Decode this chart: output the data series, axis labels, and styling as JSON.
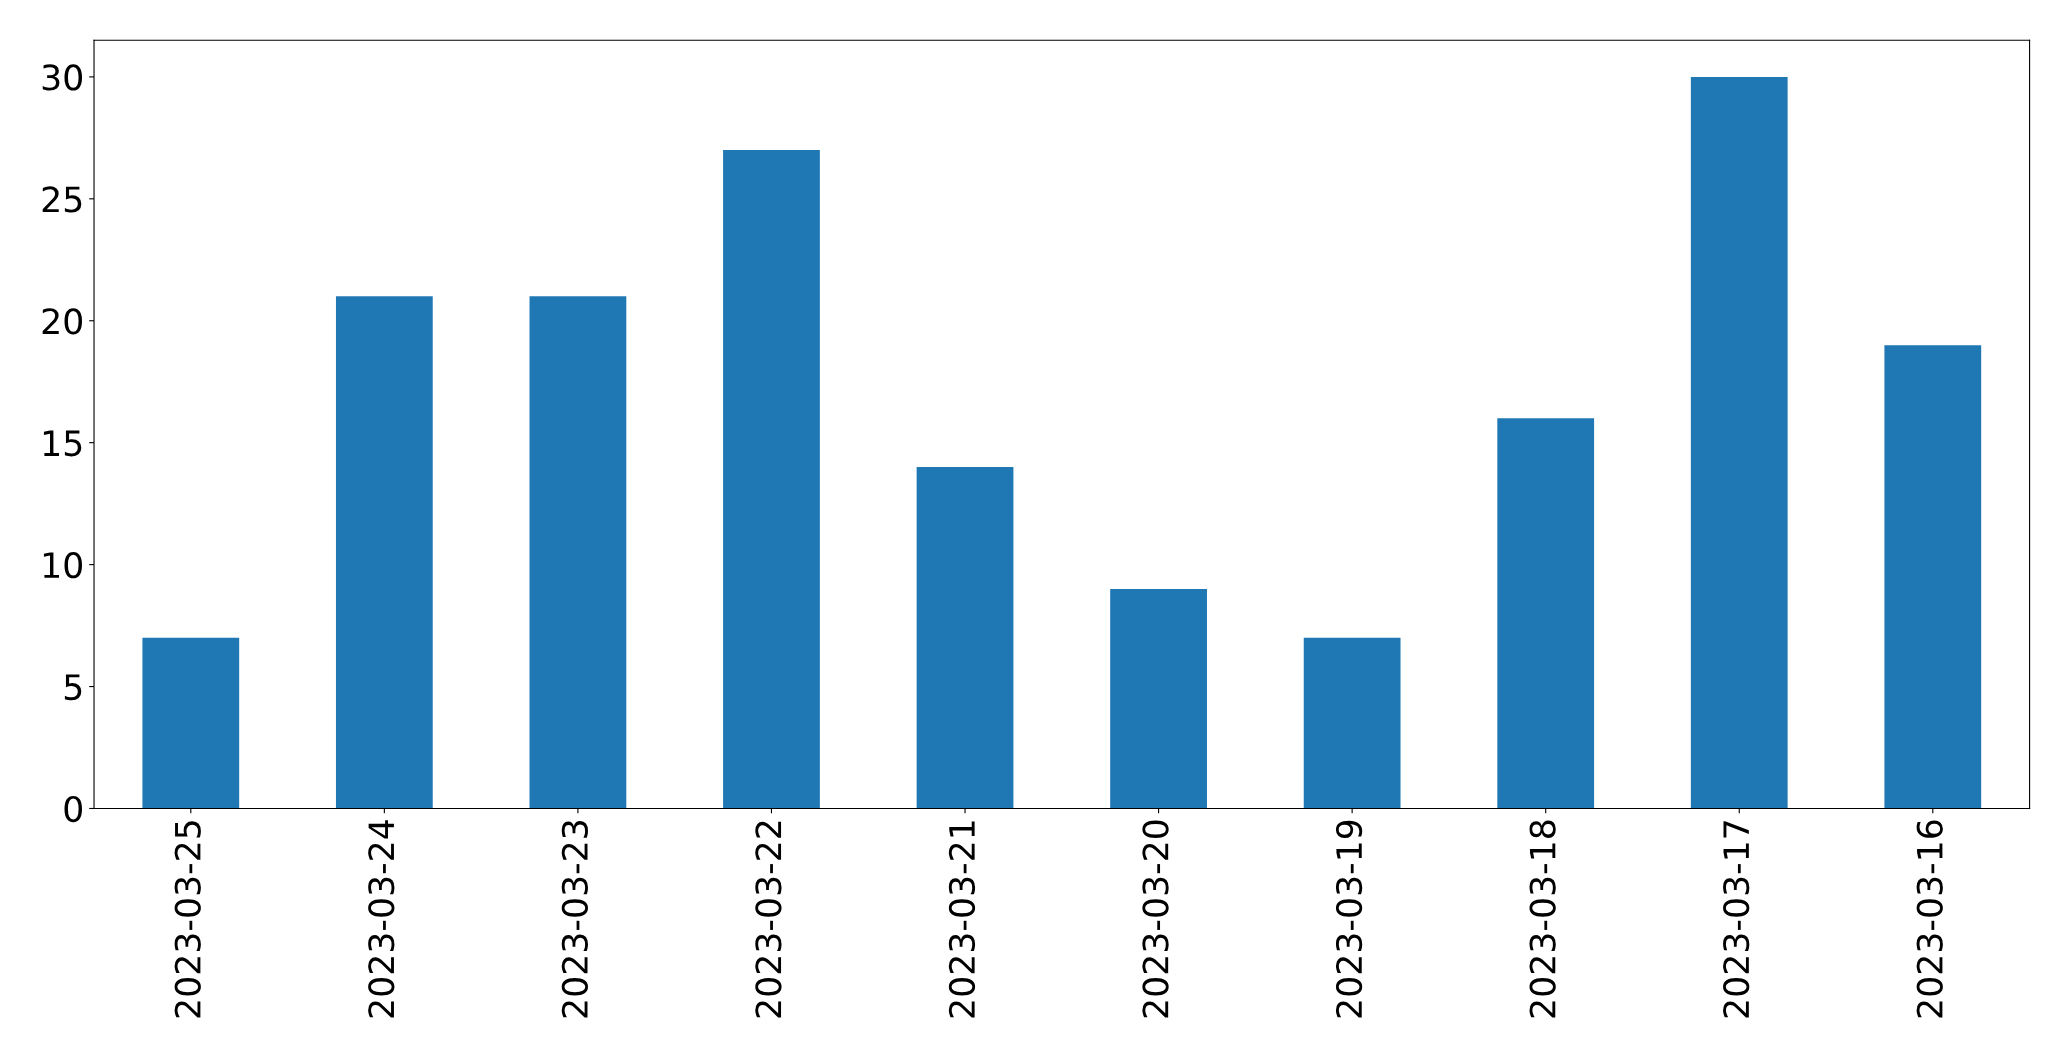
{
  "chart_data": {
    "type": "bar",
    "categories": [
      "2023-03-25",
      "2023-03-24",
      "2023-03-23",
      "2023-03-22",
      "2023-03-21",
      "2023-03-20",
      "2023-03-19",
      "2023-03-18",
      "2023-03-17",
      "2023-03-16"
    ],
    "values": [
      7,
      21,
      21,
      27,
      14,
      9,
      7,
      16,
      30,
      19
    ],
    "color": "#1f77b4",
    "ylim": [
      0,
      31.5
    ],
    "yticks": [
      0,
      5,
      10,
      15,
      20,
      25,
      30
    ],
    "grid": false,
    "legend": false
  }
}
